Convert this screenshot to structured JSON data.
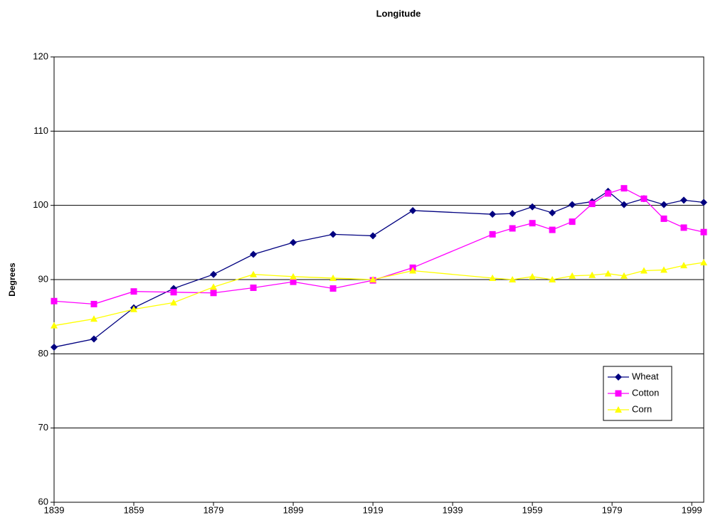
{
  "chart_data": {
    "type": "line",
    "title": "Longitude",
    "ylabel": "Degrees",
    "x": [
      1839,
      1849,
      1859,
      1869,
      1879,
      1889,
      1899,
      1909,
      1919,
      1929,
      1949,
      1954,
      1959,
      1964,
      1969,
      1974,
      1978,
      1982,
      1987,
      1992,
      1997,
      2002
    ],
    "series": [
      {
        "name": "Wheat",
        "color": "#000080",
        "marker": "diamond",
        "values": [
          80.9,
          82.0,
          86.2,
          88.8,
          90.7,
          93.4,
          95.0,
          96.1,
          95.9,
          99.3,
          98.8,
          98.9,
          99.8,
          99.0,
          100.1,
          100.5,
          101.9,
          100.1,
          100.9,
          100.1,
          100.7,
          100.4
        ]
      },
      {
        "name": "Cotton",
        "color": "#FF00FF",
        "marker": "square",
        "values": [
          87.1,
          86.7,
          88.4,
          88.3,
          88.2,
          88.9,
          89.7,
          88.8,
          89.9,
          91.6,
          96.1,
          96.9,
          97.6,
          96.7,
          97.8,
          100.2,
          101.6,
          102.3,
          100.9,
          98.2,
          97.0,
          96.4
        ]
      },
      {
        "name": "Corn",
        "color": "#FFFF00",
        "marker": "triangle",
        "values": [
          83.8,
          84.7,
          86.0,
          86.9,
          89.0,
          90.7,
          90.4,
          90.2,
          90.0,
          91.2,
          90.2,
          90.0,
          90.4,
          90.0,
          90.5,
          90.6,
          90.8,
          90.5,
          91.2,
          91.3,
          91.9,
          92.3
        ]
      }
    ],
    "xlim": [
      1839,
      2002
    ],
    "xticks": [
      1839,
      1859,
      1879,
      1899,
      1919,
      1939,
      1959,
      1979,
      1999
    ],
    "ylim": [
      60,
      120
    ],
    "yticks": [
      60,
      70,
      80,
      90,
      100,
      110,
      120
    ],
    "grid": true,
    "legend": "lower right"
  }
}
